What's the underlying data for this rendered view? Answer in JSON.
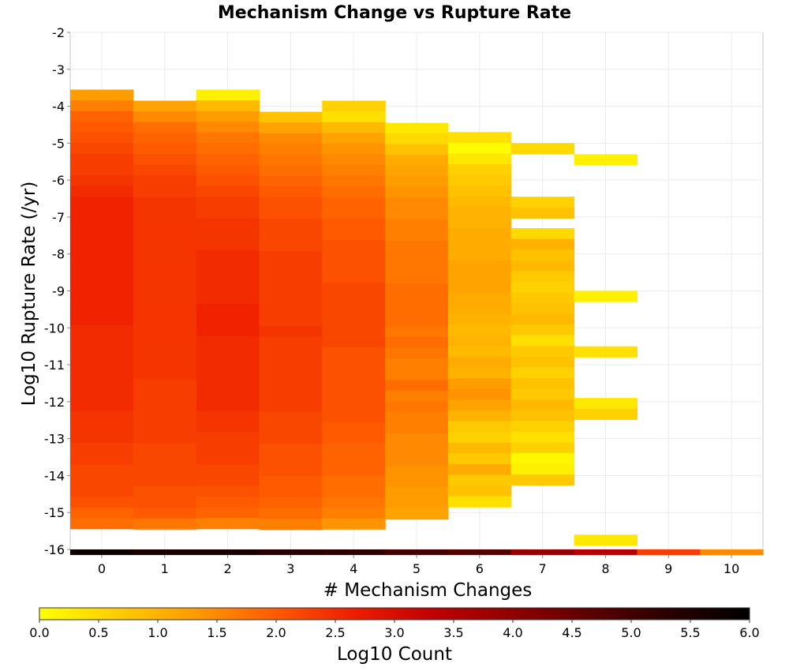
{
  "chart_data": {
    "type": "heatmap",
    "title": "Mechanism Change vs Rupture Rate",
    "xlabel": "# Mechanism Changes",
    "ylabel": "Log10 Rupture Rate (/yr)",
    "x_ticks": [
      "0",
      "1",
      "2",
      "3",
      "4",
      "5",
      "6",
      "7",
      "8",
      "9",
      "10"
    ],
    "y_ticks": [
      "-2",
      "-3",
      "-4",
      "-5",
      "-6",
      "-7",
      "-8",
      "-9",
      "-10",
      "-11",
      "-12",
      "-13",
      "-14",
      "-15",
      "-16"
    ],
    "xlim": [
      -0.5,
      10.5
    ],
    "ylim": [
      -16.15,
      -2
    ],
    "y_bin_width": 0.29,
    "grid": true,
    "colorbar": {
      "label": "Log10 Count",
      "range": [
        0,
        6
      ],
      "ticks": [
        "0.0",
        "0.5",
        "1.0",
        "1.5",
        "2.0",
        "2.5",
        "3.0",
        "3.5",
        "4.0",
        "4.5",
        "5.0",
        "5.5",
        "6.0"
      ],
      "colors": [
        "#ffff00",
        "#ffcc00",
        "#ff9900",
        "#ff5a00",
        "#ee1c00",
        "#c00000",
        "#900000",
        "#5c0000",
        "#2a0000",
        "#000000"
      ]
    },
    "columns": [
      {
        "x": 0,
        "bottom_value": 5.8,
        "top": -3.55,
        "values": [
          1.3,
          1.6,
          1.9,
          2.0,
          2.1,
          2.2,
          2.3,
          2.3,
          2.4,
          2.5,
          2.6,
          2.6,
          2.6,
          2.6,
          2.6,
          2.6,
          2.6,
          2.6,
          2.6,
          2.6,
          2.6,
          2.6,
          2.5,
          2.5,
          2.5,
          2.5,
          2.5,
          2.5,
          2.5,
          2.5,
          2.4,
          2.4,
          2.4,
          2.3,
          2.3,
          2.2,
          2.2,
          2.2,
          2.1,
          1.9,
          1.8
        ]
      },
      {
        "x": 1,
        "bottom_value": 5.6,
        "top": -3.85,
        "values": [
          1.2,
          1.5,
          1.8,
          1.9,
          2.0,
          2.1,
          2.2,
          2.3,
          2.3,
          2.4,
          2.4,
          2.4,
          2.4,
          2.4,
          2.4,
          2.4,
          2.4,
          2.4,
          2.4,
          2.4,
          2.4,
          2.4,
          2.4,
          2.4,
          2.4,
          2.4,
          2.3,
          2.3,
          2.3,
          2.3,
          2.3,
          2.3,
          2.2,
          2.2,
          2.2,
          2.2,
          2.1,
          2.1,
          2.0,
          1.7
        ]
      },
      {
        "x": 2,
        "bottom_value": 5.6,
        "top": -3.55,
        "values": [
          0.2,
          0.9,
          1.3,
          1.5,
          1.7,
          1.8,
          1.9,
          2.0,
          2.1,
          2.2,
          2.3,
          2.3,
          2.4,
          2.4,
          2.4,
          2.5,
          2.5,
          2.5,
          2.5,
          2.5,
          2.6,
          2.6,
          2.6,
          2.5,
          2.5,
          2.5,
          2.5,
          2.5,
          2.5,
          2.5,
          2.4,
          2.4,
          2.3,
          2.3,
          2.3,
          2.2,
          2.2,
          2.1,
          2.0,
          1.9,
          1.6
        ]
      },
      {
        "x": 3,
        "bottom_value": 5.4,
        "top": -4.15,
        "values": [
          0.8,
          1.2,
          1.5,
          1.6,
          1.7,
          1.8,
          1.9,
          2.0,
          2.1,
          2.1,
          2.2,
          2.2,
          2.2,
          2.3,
          2.3,
          2.3,
          2.3,
          2.3,
          2.3,
          2.3,
          2.4,
          2.3,
          2.3,
          2.3,
          2.3,
          2.3,
          2.3,
          2.3,
          2.2,
          2.2,
          2.2,
          2.1,
          2.1,
          2.1,
          2.0,
          2.0,
          1.9,
          1.8,
          1.6
        ]
      },
      {
        "x": 4,
        "bottom_value": 5.3,
        "top": -3.85,
        "values": [
          0.6,
          0.4,
          0.9,
          1.2,
          1.4,
          1.5,
          1.6,
          1.7,
          1.8,
          1.9,
          1.9,
          2.0,
          2.0,
          2.1,
          2.1,
          2.1,
          2.1,
          2.2,
          2.2,
          2.2,
          2.2,
          2.2,
          2.2,
          2.1,
          2.1,
          2.1,
          2.1,
          2.1,
          2.1,
          2.1,
          2.0,
          2.0,
          1.9,
          1.9,
          1.9,
          1.8,
          1.8,
          1.7,
          1.6,
          1.4
        ]
      },
      {
        "x": 5,
        "bottom_value": 5.0,
        "top": -4.45,
        "values": [
          0.3,
          0.5,
          0.8,
          1.1,
          1.2,
          1.3,
          1.4,
          1.5,
          1.5,
          1.6,
          1.6,
          1.7,
          1.7,
          1.7,
          1.7,
          1.8,
          1.8,
          1.8,
          1.8,
          1.7,
          1.8,
          1.7,
          1.6,
          1.6,
          1.8,
          1.6,
          1.7,
          1.6,
          1.6,
          1.5,
          1.5,
          1.5,
          1.4,
          1.4,
          1.3,
          1.3,
          1.2
        ]
      },
      {
        "x": 6,
        "bottom_value": 4.8,
        "top": -4.7,
        "values": [
          0.4,
          0.05,
          0.3,
          0.6,
          0.7,
          0.8,
          0.9,
          1.0,
          1.0,
          1.1,
          1.1,
          1.1,
          1.2,
          1.2,
          1.2,
          1.1,
          1.1,
          1.0,
          0.9,
          1.0,
          0.9,
          1.1,
          1.0,
          1.3,
          1.4,
          1.2,
          1.0,
          0.7,
          0.6,
          0.9,
          0.7,
          1.1,
          0.7,
          0.8,
          0.4
        ]
      },
      {
        "x": 7,
        "bottom_value": 3.9,
        "segments": [
          {
            "top": -5.0,
            "values": [
              0.5
            ]
          },
          {
            "top": -6.45,
            "values": [
              0.6,
              0.8
            ]
          },
          {
            "top": -7.3,
            "values": [
              0.5,
              1.0,
              0.8,
              0.9,
              0.7,
              0.6,
              0.7,
              0.8,
              0.9,
              0.7,
              0.4,
              0.7,
              0.8,
              0.6,
              0.8,
              0.7,
              0.9,
              0.8,
              0.6,
              0.4,
              0.6,
              0.1,
              0.2,
              0.7
            ]
          }
        ]
      },
      {
        "x": 8,
        "bottom_value": 3.5,
        "segments": [
          {
            "top": -5.3,
            "values": [
              0.2
            ]
          },
          {
            "top": -9.0,
            "values": [
              0.2
            ]
          },
          {
            "top": -10.5,
            "values": [
              0.4
            ]
          },
          {
            "top": -11.9,
            "values": [
              0.3,
              0.6
            ]
          },
          {
            "top": -15.6,
            "values": [
              0.3
            ]
          }
        ]
      },
      {
        "x": 9,
        "bottom_value": 2.3,
        "segments": []
      },
      {
        "x": 10,
        "bottom_value": 1.5,
        "segments": []
      }
    ]
  }
}
